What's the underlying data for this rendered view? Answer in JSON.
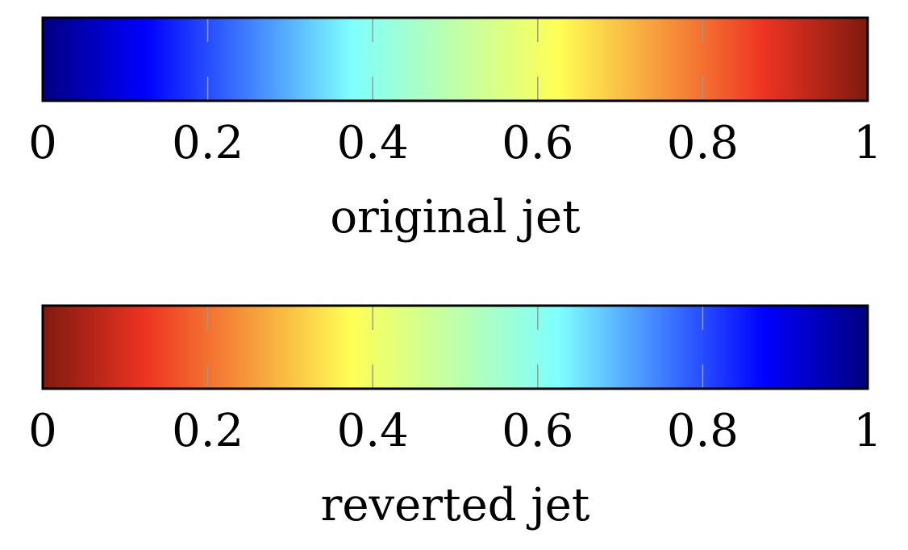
{
  "chart_data": [
    {
      "type": "colorbar",
      "colormap": "jet",
      "reversed": false,
      "xlabel": "original jet",
      "xlim": [
        0,
        1
      ],
      "ticks": [
        0,
        0.2,
        0.4,
        0.6,
        0.8,
        1
      ],
      "tick_labels": [
        "0",
        "0.2",
        "0.4",
        "0.6",
        "0.8",
        "1"
      ],
      "grid": true,
      "color_stops": [
        {
          "value": 0.0,
          "color": "#00007f"
        },
        {
          "value": 0.125,
          "color": "#0000ff"
        },
        {
          "value": 0.375,
          "color": "#7fffff"
        },
        {
          "value": 0.625,
          "color": "#ffff55"
        },
        {
          "value": 0.875,
          "color": "#ee3322"
        },
        {
          "value": 1.0,
          "color": "#7f1a0f"
        }
      ]
    },
    {
      "type": "colorbar",
      "colormap": "jet",
      "reversed": true,
      "xlabel": "reverted jet",
      "xlim": [
        0,
        1
      ],
      "ticks": [
        0,
        0.2,
        0.4,
        0.6,
        0.8,
        1
      ],
      "tick_labels": [
        "0",
        "0.2",
        "0.4",
        "0.6",
        "0.8",
        "1"
      ],
      "grid": true,
      "color_stops": [
        {
          "value": 0.0,
          "color": "#7f1a0f"
        },
        {
          "value": 0.125,
          "color": "#ee3322"
        },
        {
          "value": 0.375,
          "color": "#ffff55"
        },
        {
          "value": 0.625,
          "color": "#7fffff"
        },
        {
          "value": 0.875,
          "color": "#0000ff"
        },
        {
          "value": 1.0,
          "color": "#00007f"
        }
      ]
    }
  ],
  "style": {
    "frame_color": "#000000",
    "grid_color": "#999999",
    "background": "#ffffff"
  }
}
